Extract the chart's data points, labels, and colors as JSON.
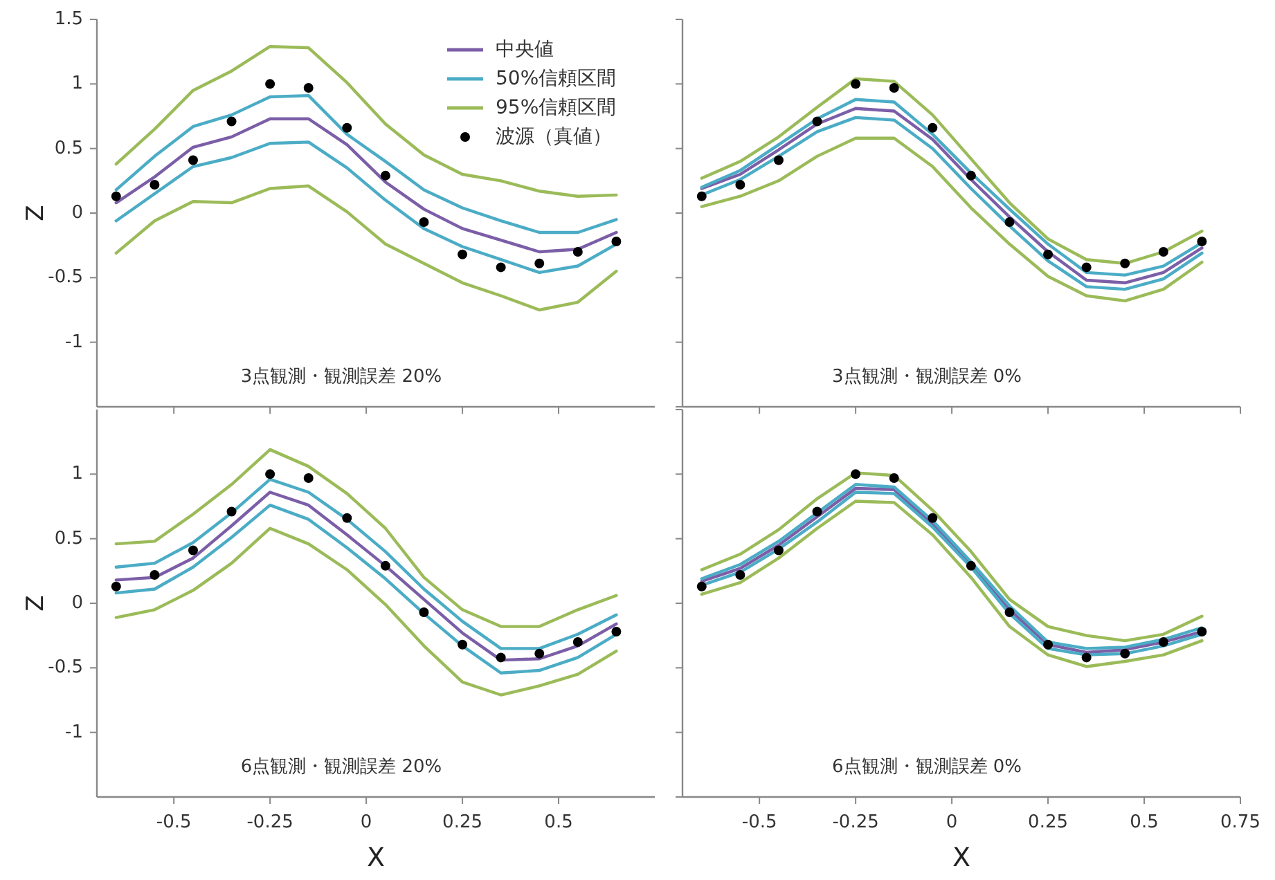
{
  "chart_data": [
    {
      "type": "line",
      "title": "3点観測・観測誤差 20%",
      "ylabel": "Z",
      "xlim": [
        -0.7,
        0.75
      ],
      "ylim": [
        -1.5,
        1.5
      ],
      "xticks": [
        -0.5,
        -0.25,
        0,
        0.25,
        0.5
      ],
      "yticks": [
        -1,
        -0.5,
        0,
        0.5,
        1,
        1.5
      ],
      "tick_labels": "y",
      "legend": "top right",
      "grid": false,
      "x": [
        -0.65,
        -0.55,
        -0.45,
        -0.35,
        -0.25,
        -0.15,
        -0.05,
        0.05,
        0.15,
        0.25,
        0.35,
        0.45,
        0.55,
        0.65
      ],
      "series": [
        {
          "name": "中央値",
          "color": "#7b5ea7",
          "values": [
            0.08,
            0.28,
            0.51,
            0.59,
            0.73,
            0.73,
            0.53,
            0.24,
            0.03,
            -0.12,
            -0.21,
            -0.3,
            -0.28,
            -0.15
          ]
        },
        {
          "name": "50%信頼区間",
          "color": "#4bacc6",
          "values": [
            0.18,
            0.44,
            0.67,
            0.76,
            0.9,
            0.91,
            0.61,
            0.4,
            0.18,
            0.04,
            -0.06,
            -0.15,
            -0.15,
            -0.05
          ]
        },
        {
          "color": "#4bacc6",
          "values": [
            -0.06,
            0.15,
            0.36,
            0.43,
            0.54,
            0.55,
            0.35,
            0.1,
            -0.12,
            -0.26,
            -0.36,
            -0.46,
            -0.41,
            -0.24
          ]
        },
        {
          "name": "95%信頼区間",
          "color": "#9bbb59",
          "values": [
            0.38,
            0.65,
            0.95,
            1.1,
            1.29,
            1.28,
            1.01,
            0.69,
            0.45,
            0.3,
            0.25,
            0.17,
            0.13,
            0.14
          ]
        },
        {
          "color": "#9bbb59",
          "values": [
            -0.31,
            -0.06,
            0.09,
            0.08,
            0.19,
            0.21,
            0.01,
            -0.24,
            -0.39,
            -0.54,
            -0.64,
            -0.75,
            -0.69,
            -0.45
          ]
        },
        {
          "name": "波源（真値）",
          "type": "scatter",
          "marker": "circle",
          "color": "#000000",
          "values": [
            0.13,
            0.22,
            0.41,
            0.71,
            1.0,
            0.97,
            0.66,
            0.29,
            -0.07,
            -0.32,
            -0.42,
            -0.39,
            -0.3,
            -0.22
          ]
        }
      ]
    },
    {
      "type": "line",
      "title": "3点観測・観測誤差 0%",
      "xlim": [
        -0.7,
        0.75
      ],
      "ylim": [
        -1.5,
        1.5
      ],
      "xticks": [
        -0.5,
        -0.25,
        0,
        0.25,
        0.5,
        0.75
      ],
      "yticks": [
        -1.5,
        -1,
        -0.5,
        0,
        0.5,
        1,
        1.5
      ],
      "tick_labels": false,
      "grid": false,
      "x": [
        -0.65,
        -0.55,
        -0.45,
        -0.35,
        -0.25,
        -0.15,
        -0.05,
        0.05,
        0.15,
        0.25,
        0.35,
        0.45,
        0.55,
        0.65
      ],
      "series": [
        {
          "color": "#7b5ea7",
          "values": [
            0.19,
            0.3,
            0.49,
            0.69,
            0.81,
            0.79,
            0.57,
            0.26,
            -0.03,
            -0.3,
            -0.52,
            -0.54,
            -0.46,
            -0.27
          ]
        },
        {
          "color": "#4bacc6",
          "values": [
            0.2,
            0.33,
            0.53,
            0.73,
            0.88,
            0.86,
            0.61,
            0.31,
            0.03,
            -0.24,
            -0.46,
            -0.48,
            -0.41,
            -0.23
          ]
        },
        {
          "color": "#4bacc6",
          "values": [
            0.14,
            0.26,
            0.44,
            0.63,
            0.74,
            0.72,
            0.5,
            0.19,
            -0.1,
            -0.37,
            -0.57,
            -0.59,
            -0.51,
            -0.31
          ]
        },
        {
          "color": "#9bbb59",
          "values": [
            0.27,
            0.4,
            0.59,
            0.82,
            1.04,
            1.02,
            0.76,
            0.42,
            0.08,
            -0.2,
            -0.36,
            -0.39,
            -0.3,
            -0.14
          ]
        },
        {
          "color": "#9bbb59",
          "values": [
            0.05,
            0.13,
            0.25,
            0.44,
            0.58,
            0.58,
            0.36,
            0.04,
            -0.24,
            -0.49,
            -0.64,
            -0.68,
            -0.59,
            -0.38
          ]
        },
        {
          "type": "scatter",
          "marker": "circle",
          "color": "#000000",
          "values": [
            0.13,
            0.22,
            0.41,
            0.71,
            1.0,
            0.97,
            0.66,
            0.29,
            -0.07,
            -0.32,
            -0.42,
            -0.39,
            -0.3,
            -0.22
          ]
        }
      ]
    },
    {
      "type": "line",
      "title": "6点観測・観測誤差 20%",
      "xlabel": "X",
      "ylabel": "Z",
      "xlim": [
        -0.7,
        0.75
      ],
      "ylim": [
        -1.5,
        1.5
      ],
      "xticks": [
        -0.5,
        -0.25,
        0,
        0.25,
        0.5
      ],
      "yticks": [
        -1,
        -0.5,
        0,
        0.5,
        1
      ],
      "grid": false,
      "x": [
        -0.65,
        -0.55,
        -0.45,
        -0.35,
        -0.25,
        -0.15,
        -0.05,
        0.05,
        0.15,
        0.25,
        0.35,
        0.45,
        0.55,
        0.65
      ],
      "series": [
        {
          "color": "#7b5ea7",
          "values": [
            0.18,
            0.2,
            0.35,
            0.6,
            0.86,
            0.76,
            0.53,
            0.29,
            0.03,
            -0.23,
            -0.44,
            -0.43,
            -0.33,
            -0.16
          ]
        },
        {
          "color": "#4bacc6",
          "values": [
            0.28,
            0.31,
            0.47,
            0.7,
            0.96,
            0.86,
            0.65,
            0.4,
            0.11,
            -0.14,
            -0.35,
            -0.35,
            -0.24,
            -0.09
          ]
        },
        {
          "color": "#4bacc6",
          "values": [
            0.08,
            0.11,
            0.28,
            0.51,
            0.76,
            0.65,
            0.43,
            0.19,
            -0.08,
            -0.33,
            -0.54,
            -0.52,
            -0.42,
            -0.24
          ]
        },
        {
          "color": "#9bbb59",
          "values": [
            0.46,
            0.48,
            0.69,
            0.92,
            1.19,
            1.06,
            0.85,
            0.58,
            0.2,
            -0.05,
            -0.18,
            -0.18,
            -0.05,
            0.06
          ]
        },
        {
          "color": "#9bbb59",
          "values": [
            -0.11,
            -0.05,
            0.1,
            0.31,
            0.58,
            0.46,
            0.26,
            -0.01,
            -0.33,
            -0.61,
            -0.71,
            -0.64,
            -0.55,
            -0.37
          ]
        },
        {
          "type": "scatter",
          "marker": "circle",
          "color": "#000000",
          "values": [
            0.13,
            0.22,
            0.41,
            0.71,
            1.0,
            0.97,
            0.66,
            0.29,
            -0.07,
            -0.32,
            -0.42,
            -0.39,
            -0.3,
            -0.22
          ]
        }
      ]
    },
    {
      "type": "line",
      "title": "6点観測・観測誤差 0%",
      "xlabel": "X",
      "xlim": [
        -0.7,
        0.75
      ],
      "ylim": [
        -1.5,
        1.5
      ],
      "xticks": [
        -0.5,
        -0.25,
        0,
        0.25,
        0.5,
        0.75
      ],
      "yticks": [
        -1.5,
        -1,
        -0.5,
        0,
        0.5,
        1,
        1.5
      ],
      "tick_labels": "x",
      "grid": false,
      "x": [
        -0.65,
        -0.55,
        -0.45,
        -0.35,
        -0.25,
        -0.15,
        -0.05,
        0.05,
        0.15,
        0.25,
        0.35,
        0.45,
        0.55,
        0.65
      ],
      "series": [
        {
          "color": "#7b5ea7",
          "values": [
            0.17,
            0.27,
            0.45,
            0.67,
            0.89,
            0.88,
            0.61,
            0.3,
            -0.05,
            -0.32,
            -0.38,
            -0.36,
            -0.3,
            -0.22
          ]
        },
        {
          "color": "#4bacc6",
          "values": [
            0.19,
            0.3,
            0.48,
            0.7,
            0.92,
            0.9,
            0.64,
            0.32,
            -0.02,
            -0.3,
            -0.35,
            -0.34,
            -0.28,
            -0.19
          ]
        },
        {
          "color": "#4bacc6",
          "values": [
            0.14,
            0.24,
            0.42,
            0.63,
            0.86,
            0.85,
            0.59,
            0.28,
            -0.08,
            -0.35,
            -0.4,
            -0.39,
            -0.33,
            -0.24
          ]
        },
        {
          "color": "#9bbb59",
          "values": [
            0.26,
            0.38,
            0.57,
            0.81,
            1.01,
            0.99,
            0.72,
            0.4,
            0.03,
            -0.18,
            -0.25,
            -0.29,
            -0.24,
            -0.1
          ]
        },
        {
          "color": "#9bbb59",
          "values": [
            0.07,
            0.16,
            0.35,
            0.58,
            0.79,
            0.78,
            0.53,
            0.2,
            -0.18,
            -0.4,
            -0.49,
            -0.45,
            -0.4,
            -0.29
          ]
        },
        {
          "type": "scatter",
          "marker": "circle",
          "color": "#000000",
          "values": [
            0.13,
            0.22,
            0.41,
            0.71,
            1.0,
            0.97,
            0.66,
            0.29,
            -0.07,
            -0.32,
            -0.42,
            -0.39,
            -0.3,
            -0.22
          ]
        }
      ]
    }
  ]
}
